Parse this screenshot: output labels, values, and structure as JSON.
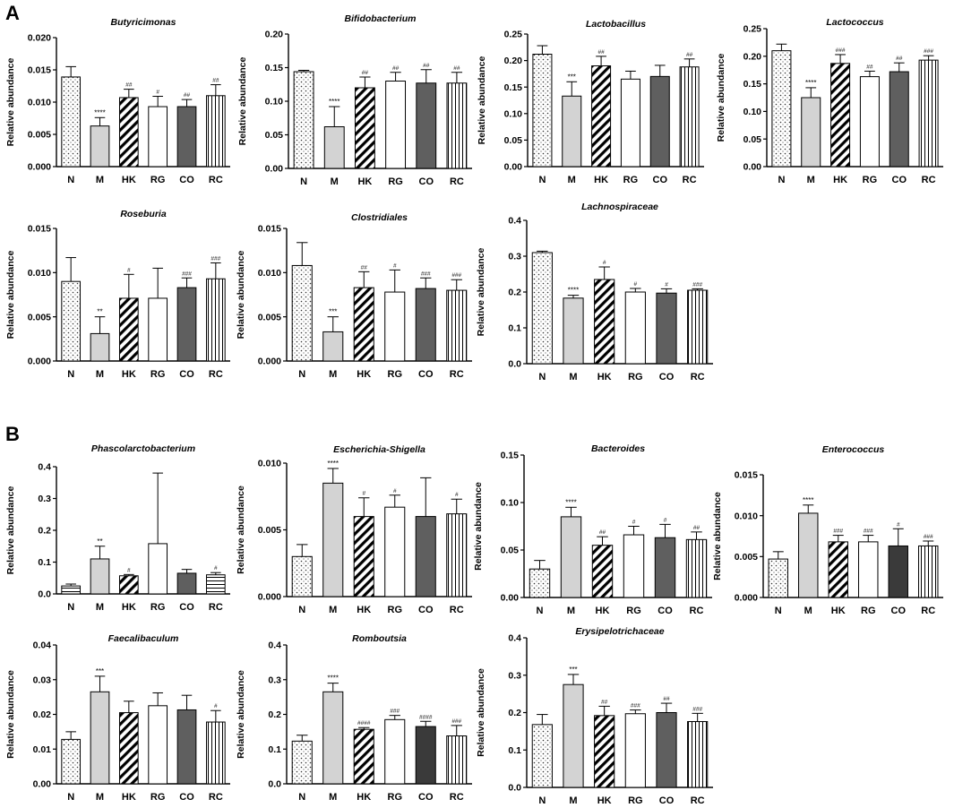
{
  "panels": [
    "A",
    "B"
  ],
  "bar_styles": {
    "N": "dots",
    "M": "solid-light",
    "HK": "diagonal",
    "RG": "white",
    "CO": "solid-dark",
    "RC": "vertical"
  },
  "colors": {
    "light_gray": "#d3d3d3",
    "dark_gray": "#5f5f5f",
    "black_bar": "#3a3a3a",
    "stroke": "#000000"
  },
  "chart_data": [
    {
      "panel": "A",
      "type": "bar",
      "title": "Butyricimonas",
      "ylabel": "Relative abundance",
      "categories": [
        "N",
        "M",
        "HK",
        "RG",
        "CO",
        "RC"
      ],
      "ylim": [
        0,
        0.02
      ],
      "yticks": [
        "0.000",
        "0.005",
        "0.010",
        "0.015",
        "0.020"
      ],
      "values": [
        0.0139,
        0.0063,
        0.0107,
        0.0093,
        0.0093,
        0.011
      ],
      "errors": [
        0.0016,
        0.0013,
        0.0013,
        0.0016,
        0.0011,
        0.0017
      ],
      "labels": [
        "",
        "****",
        "##",
        "#",
        "##",
        "##"
      ]
    },
    {
      "panel": "A",
      "type": "bar",
      "title": "Bifidobacterium",
      "ylabel": "Relative abundance",
      "categories": [
        "N",
        "M",
        "HK",
        "RG",
        "CO",
        "RC"
      ],
      "ylim": [
        0,
        0.2
      ],
      "yticks": [
        "0.00",
        "0.05",
        "0.10",
        "0.15",
        "0.20"
      ],
      "values": [
        0.144,
        0.062,
        0.12,
        0.13,
        0.127,
        0.127
      ],
      "errors": [
        0.002,
        0.03,
        0.016,
        0.013,
        0.02,
        0.016
      ],
      "labels": [
        "",
        "****",
        "##",
        "##",
        "##",
        "##"
      ]
    },
    {
      "panel": "A",
      "type": "bar",
      "title": "Lactobacillus",
      "ylabel": "Relative abundance",
      "categories": [
        "N",
        "M",
        "HK",
        "RG",
        "CO",
        "RC"
      ],
      "ylim": [
        0,
        0.25
      ],
      "yticks": [
        "0.00",
        "0.05",
        "0.10",
        "0.15",
        "0.20",
        "0.25"
      ],
      "values": [
        0.212,
        0.133,
        0.19,
        0.165,
        0.17,
        0.188
      ],
      "errors": [
        0.016,
        0.027,
        0.018,
        0.015,
        0.021,
        0.015
      ],
      "labels": [
        "",
        "***",
        "##",
        "",
        "",
        "##"
      ]
    },
    {
      "panel": "A",
      "type": "bar",
      "title": "Lactococcus",
      "ylabel": "Relative abundance",
      "categories": [
        "N",
        "M",
        "HK",
        "RG",
        "CO",
        "RC"
      ],
      "ylim": [
        0,
        0.25
      ],
      "yticks": [
        "0.00",
        "0.05",
        "0.10",
        "0.15",
        "0.20",
        "0.25"
      ],
      "values": [
        0.21,
        0.125,
        0.187,
        0.163,
        0.172,
        0.193
      ],
      "errors": [
        0.012,
        0.018,
        0.016,
        0.01,
        0.016,
        0.008
      ],
      "labels": [
        "",
        "****",
        "###",
        "##",
        "##",
        "###"
      ]
    },
    {
      "panel": "A",
      "type": "bar",
      "title": "Roseburia",
      "ylabel": "Relative abundance",
      "categories": [
        "N",
        "M",
        "HK",
        "RG",
        "CO",
        "RC"
      ],
      "ylim": [
        0,
        0.015
      ],
      "yticks": [
        "0.000",
        "0.005",
        "0.010",
        "0.015"
      ],
      "values": [
        0.009,
        0.0031,
        0.0071,
        0.0071,
        0.0083,
        0.0093
      ],
      "errors": [
        0.0027,
        0.0019,
        0.0027,
        0.0034,
        0.0011,
        0.0018
      ],
      "labels": [
        "",
        "**",
        "#",
        "",
        "###",
        "###"
      ]
    },
    {
      "panel": "A",
      "type": "bar",
      "title": "Clostridiales",
      "ylabel": "Relative abundance",
      "categories": [
        "N",
        "M",
        "HK",
        "RG",
        "CO",
        "RC"
      ],
      "ylim": [
        0,
        0.015
      ],
      "yticks": [
        "0.000",
        "0.005",
        "0.010",
        "0.015"
      ],
      "values": [
        0.0108,
        0.0033,
        0.0083,
        0.0078,
        0.0082,
        0.008
      ],
      "errors": [
        0.0026,
        0.0017,
        0.0018,
        0.0025,
        0.0012,
        0.0012
      ],
      "labels": [
        "",
        "***",
        "##",
        "#",
        "###",
        "###"
      ]
    },
    {
      "panel": "A",
      "type": "bar",
      "title": "Lachnospiraceae",
      "ylabel": "Relative abundance",
      "categories": [
        "N",
        "M",
        "HK",
        "RG",
        "CO",
        "RC"
      ],
      "ylim": [
        0,
        0.4
      ],
      "yticks": [
        "0.0",
        "0.1",
        "0.2",
        "0.3",
        "0.4"
      ],
      "values": [
        0.31,
        0.183,
        0.235,
        0.2,
        0.197,
        0.205
      ],
      "errors": [
        0.004,
        0.008,
        0.035,
        0.01,
        0.012,
        0.004
      ],
      "labels": [
        "",
        "****",
        "#",
        "#",
        "#",
        "###"
      ]
    },
    {
      "panel": "B",
      "type": "bar",
      "title": "Phascolarctobacterium",
      "ylabel": "Relative abundance",
      "categories": [
        "N",
        "M",
        "HK",
        "RG",
        "CO",
        "RC"
      ],
      "ylim": [
        0,
        0.4
      ],
      "yticks": [
        "0.0",
        "0.1",
        "0.2",
        "0.3",
        "0.4"
      ],
      "values": [
        0.025,
        0.11,
        0.057,
        0.158,
        0.065,
        0.06
      ],
      "errors": [
        0.006,
        0.04,
        0.004,
        0.222,
        0.012,
        0.007
      ],
      "labels": [
        "",
        "**",
        "#",
        "",
        "",
        "#"
      ]
    },
    {
      "panel": "B",
      "type": "bar",
      "title": "Escherichia-Shigella",
      "ylabel": "Relative abundance",
      "categories": [
        "N",
        "M",
        "HK",
        "RG",
        "CO",
        "RC"
      ],
      "ylim": [
        0,
        0.01
      ],
      "yticks": [
        "0.000",
        "0.005",
        "0.010"
      ],
      "values": [
        0.003,
        0.0085,
        0.006,
        0.0067,
        0.006,
        0.0062
      ],
      "errors": [
        0.0009,
        0.0011,
        0.0014,
        0.0009,
        0.0029,
        0.0011
      ],
      "labels": [
        "",
        "****",
        "#",
        "#",
        "",
        "#"
      ]
    },
    {
      "panel": "B",
      "type": "bar",
      "title": "Bacteroides",
      "ylabel": "Relative abundance",
      "categories": [
        "N",
        "M",
        "HK",
        "RG",
        "CO",
        "RC"
      ],
      "ylim": [
        0,
        0.15
      ],
      "yticks": [
        "0.00",
        "0.05",
        "0.10",
        "0.15"
      ],
      "values": [
        0.03,
        0.085,
        0.055,
        0.066,
        0.063,
        0.061
      ],
      "errors": [
        0.009,
        0.01,
        0.009,
        0.009,
        0.014,
        0.008
      ],
      "labels": [
        "",
        "****",
        "##",
        "#",
        "#",
        "##"
      ]
    },
    {
      "panel": "B",
      "type": "bar",
      "title": "Enterococcus",
      "ylabel": "Relative abundance",
      "categories": [
        "N",
        "M",
        "HK",
        "RG",
        "CO",
        "RC"
      ],
      "ylim": [
        0,
        0.015
      ],
      "yticks": [
        "0.000",
        "0.005",
        "0.010",
        "0.015"
      ],
      "values": [
        0.0047,
        0.0103,
        0.0068,
        0.0068,
        0.0063,
        0.0063
      ],
      "errors": [
        0.0009,
        0.001,
        0.0008,
        0.0008,
        0.0021,
        0.0006
      ],
      "labels": [
        "",
        "****",
        "###",
        "###",
        "#",
        "###"
      ]
    },
    {
      "panel": "B",
      "type": "bar",
      "title": "Faecalibaculum",
      "ylabel": "Relative abundance",
      "categories": [
        "N",
        "M",
        "HK",
        "RG",
        "CO",
        "RC"
      ],
      "ylim": [
        0,
        0.04
      ],
      "yticks": [
        "0.00",
        "0.01",
        "0.02",
        "0.03",
        "0.04"
      ],
      "values": [
        0.0128,
        0.0265,
        0.0205,
        0.0225,
        0.0213,
        0.0178
      ],
      "errors": [
        0.0022,
        0.0045,
        0.0033,
        0.0037,
        0.0042,
        0.0033
      ],
      "labels": [
        "",
        "***",
        "",
        "",
        "",
        "#"
      ]
    },
    {
      "panel": "B",
      "type": "bar",
      "title": "Romboutsia",
      "ylabel": "Relative abundance",
      "categories": [
        "N",
        "M",
        "HK",
        "RG",
        "CO",
        "RC"
      ],
      "ylim": [
        0,
        0.4
      ],
      "yticks": [
        "0.0",
        "0.1",
        "0.2",
        "0.3",
        "0.4"
      ],
      "values": [
        0.123,
        0.265,
        0.157,
        0.185,
        0.165,
        0.138
      ],
      "errors": [
        0.017,
        0.025,
        0.005,
        0.012,
        0.015,
        0.03
      ],
      "labels": [
        "",
        "****",
        "####",
        "###",
        "####",
        "###"
      ]
    },
    {
      "panel": "B",
      "type": "bar",
      "title": "Erysipelotrichaceae",
      "ylabel": "Relative abundance",
      "categories": [
        "N",
        "M",
        "HK",
        "RG",
        "CO",
        "RC"
      ],
      "ylim": [
        0,
        0.4
      ],
      "yticks": [
        "0.0",
        "0.1",
        "0.2",
        "0.3",
        "0.4"
      ],
      "values": [
        0.168,
        0.275,
        0.192,
        0.197,
        0.2,
        0.176
      ],
      "errors": [
        0.027,
        0.027,
        0.025,
        0.01,
        0.025,
        0.022
      ],
      "labels": [
        "",
        "***",
        "##",
        "###",
        "##",
        "###"
      ]
    }
  ]
}
